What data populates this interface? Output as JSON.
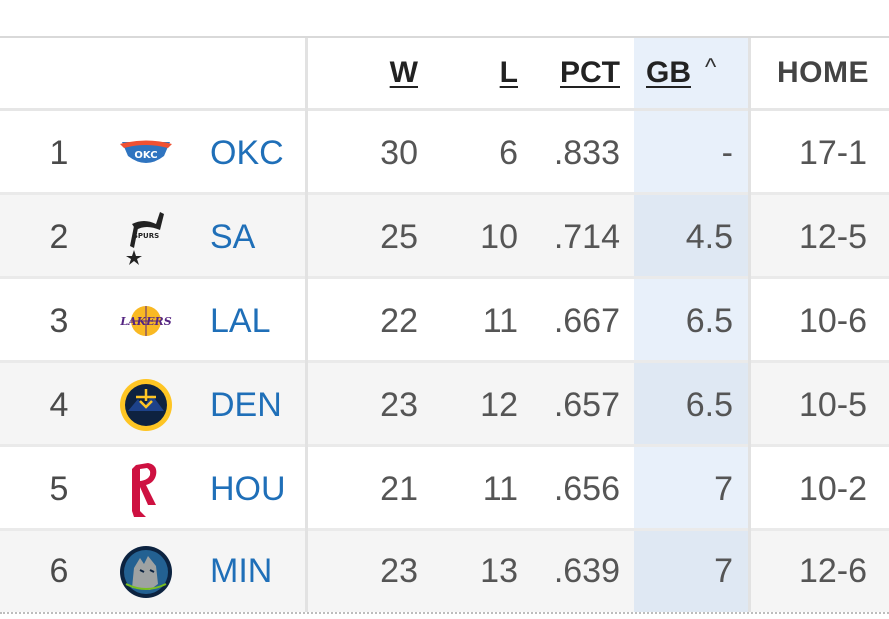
{
  "columns": {
    "w": "W",
    "l": "L",
    "pct": "PCT",
    "gb": "GB",
    "home": "HOME"
  },
  "sort": {
    "column": "GB",
    "direction": "ascending",
    "indicator_icon": "caret-up-icon"
  },
  "rows": [
    {
      "rank": "1",
      "team": "OKC",
      "logo": "okc-thunder-logo",
      "w": "30",
      "l": "6",
      "pct": ".833",
      "gb": "-",
      "home": "17-1"
    },
    {
      "rank": "2",
      "team": "SA",
      "logo": "spurs-logo",
      "w": "25",
      "l": "10",
      "pct": ".714",
      "gb": "4.5",
      "home": "12-5"
    },
    {
      "rank": "3",
      "team": "LAL",
      "logo": "lakers-logo",
      "w": "22",
      "l": "11",
      "pct": ".667",
      "gb": "6.5",
      "home": "10-6"
    },
    {
      "rank": "4",
      "team": "DEN",
      "logo": "nuggets-logo",
      "w": "23",
      "l": "12",
      "pct": ".657",
      "gb": "6.5",
      "home": "10-5"
    },
    {
      "rank": "5",
      "team": "HOU",
      "logo": "rockets-logo",
      "w": "21",
      "l": "11",
      "pct": ".656",
      "gb": "7",
      "home": "10-2"
    },
    {
      "rank": "6",
      "team": "MIN",
      "logo": "timberwolves-logo",
      "w": "23",
      "l": "13",
      "pct": ".639",
      "gb": "7",
      "home": "12-6"
    }
  ],
  "colors": {
    "team_link": "#1f6fb8",
    "sorted_column_bg": "#e8f0fa",
    "alt_row_bg": "#f5f5f5"
  }
}
